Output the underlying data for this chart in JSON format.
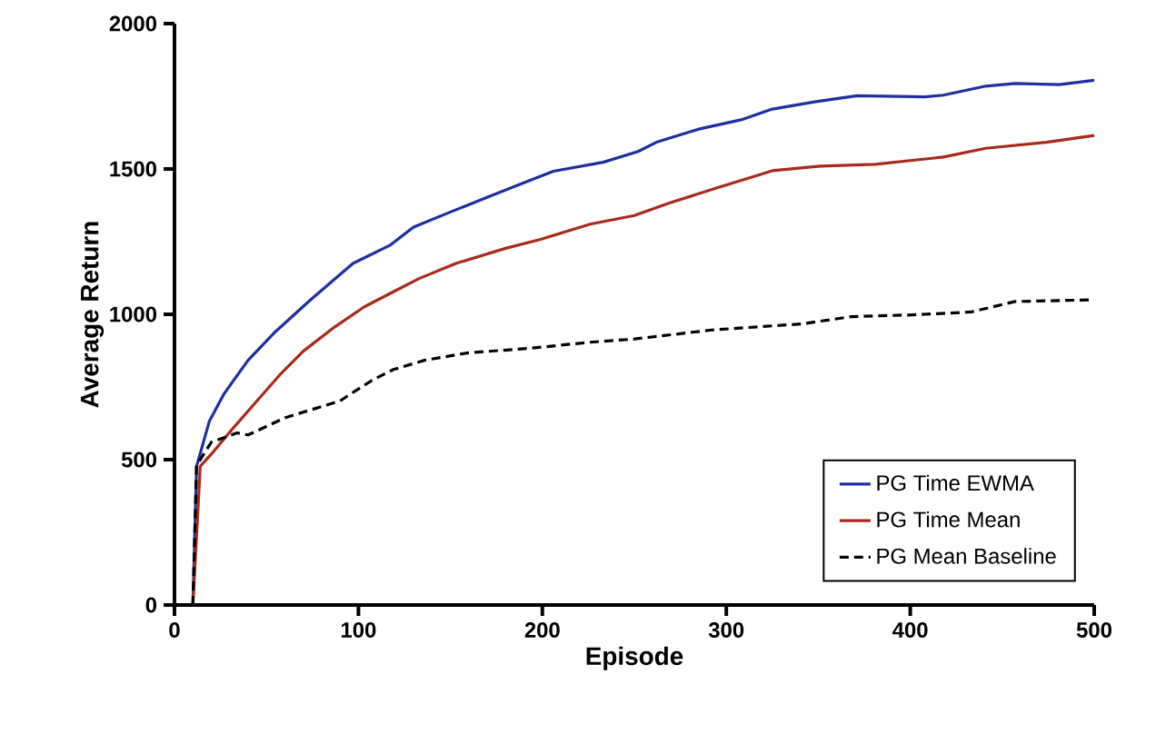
{
  "chart_data": {
    "type": "line",
    "xlabel": "Episode",
    "ylabel": "Average Return",
    "xlim": [
      0,
      500
    ],
    "ylim": [
      0,
      2000
    ],
    "xticks": [
      0,
      100,
      200,
      300,
      400,
      500
    ],
    "yticks": [
      0,
      500,
      1000,
      1500,
      2000
    ],
    "grid": false,
    "legend": "bottom right",
    "marker": "none",
    "series": [
      {
        "name": "PG Time EWMA",
        "color": "#1f2fa0",
        "line_style": "solid",
        "x": [
          10,
          12,
          19,
          27,
          40,
          54,
          74,
          97,
          117,
          130,
          150,
          173,
          193,
          206,
          233,
          252,
          262,
          285,
          308,
          325,
          348,
          371,
          408,
          418,
          441,
          457,
          481,
          500
        ],
        "values": [
          0,
          477,
          633,
          727,
          842,
          935,
          1050,
          1175,
          1237,
          1300,
          1352,
          1410,
          1460,
          1492,
          1523,
          1560,
          1592,
          1637,
          1669,
          1706,
          1731,
          1752,
          1748,
          1754,
          1785,
          1794,
          1790,
          1805
        ]
      },
      {
        "name": "PG Time Mean",
        "color": "#a82a1a",
        "line_style": "solid",
        "x": [
          10,
          14,
          20,
          31,
          44,
          57,
          70,
          87,
          103,
          117,
          133,
          153,
          180,
          199,
          226,
          250,
          269,
          295,
          325,
          351,
          381,
          418,
          441,
          474,
          500
        ],
        "values": [
          0,
          477,
          519,
          602,
          696,
          790,
          873,
          956,
          1025,
          1071,
          1123,
          1175,
          1227,
          1258,
          1310,
          1340,
          1383,
          1435,
          1494,
          1510,
          1516,
          1541,
          1571,
          1592,
          1615
        ]
      },
      {
        "name": "PG Mean Baseline",
        "color": "#000000",
        "line_style": "dashed",
        "x": [
          10,
          12,
          20,
          34,
          40,
          60,
          90,
          96,
          108,
          119,
          136,
          159,
          193,
          226,
          250,
          292,
          341,
          368,
          401,
          433,
          457,
          500
        ],
        "values": [
          0,
          480,
          560,
          592,
          585,
          644,
          702,
          727,
          775,
          810,
          842,
          867,
          883,
          904,
          915,
          946,
          967,
          992,
          998,
          1008,
          1044,
          1050
        ]
      }
    ]
  }
}
